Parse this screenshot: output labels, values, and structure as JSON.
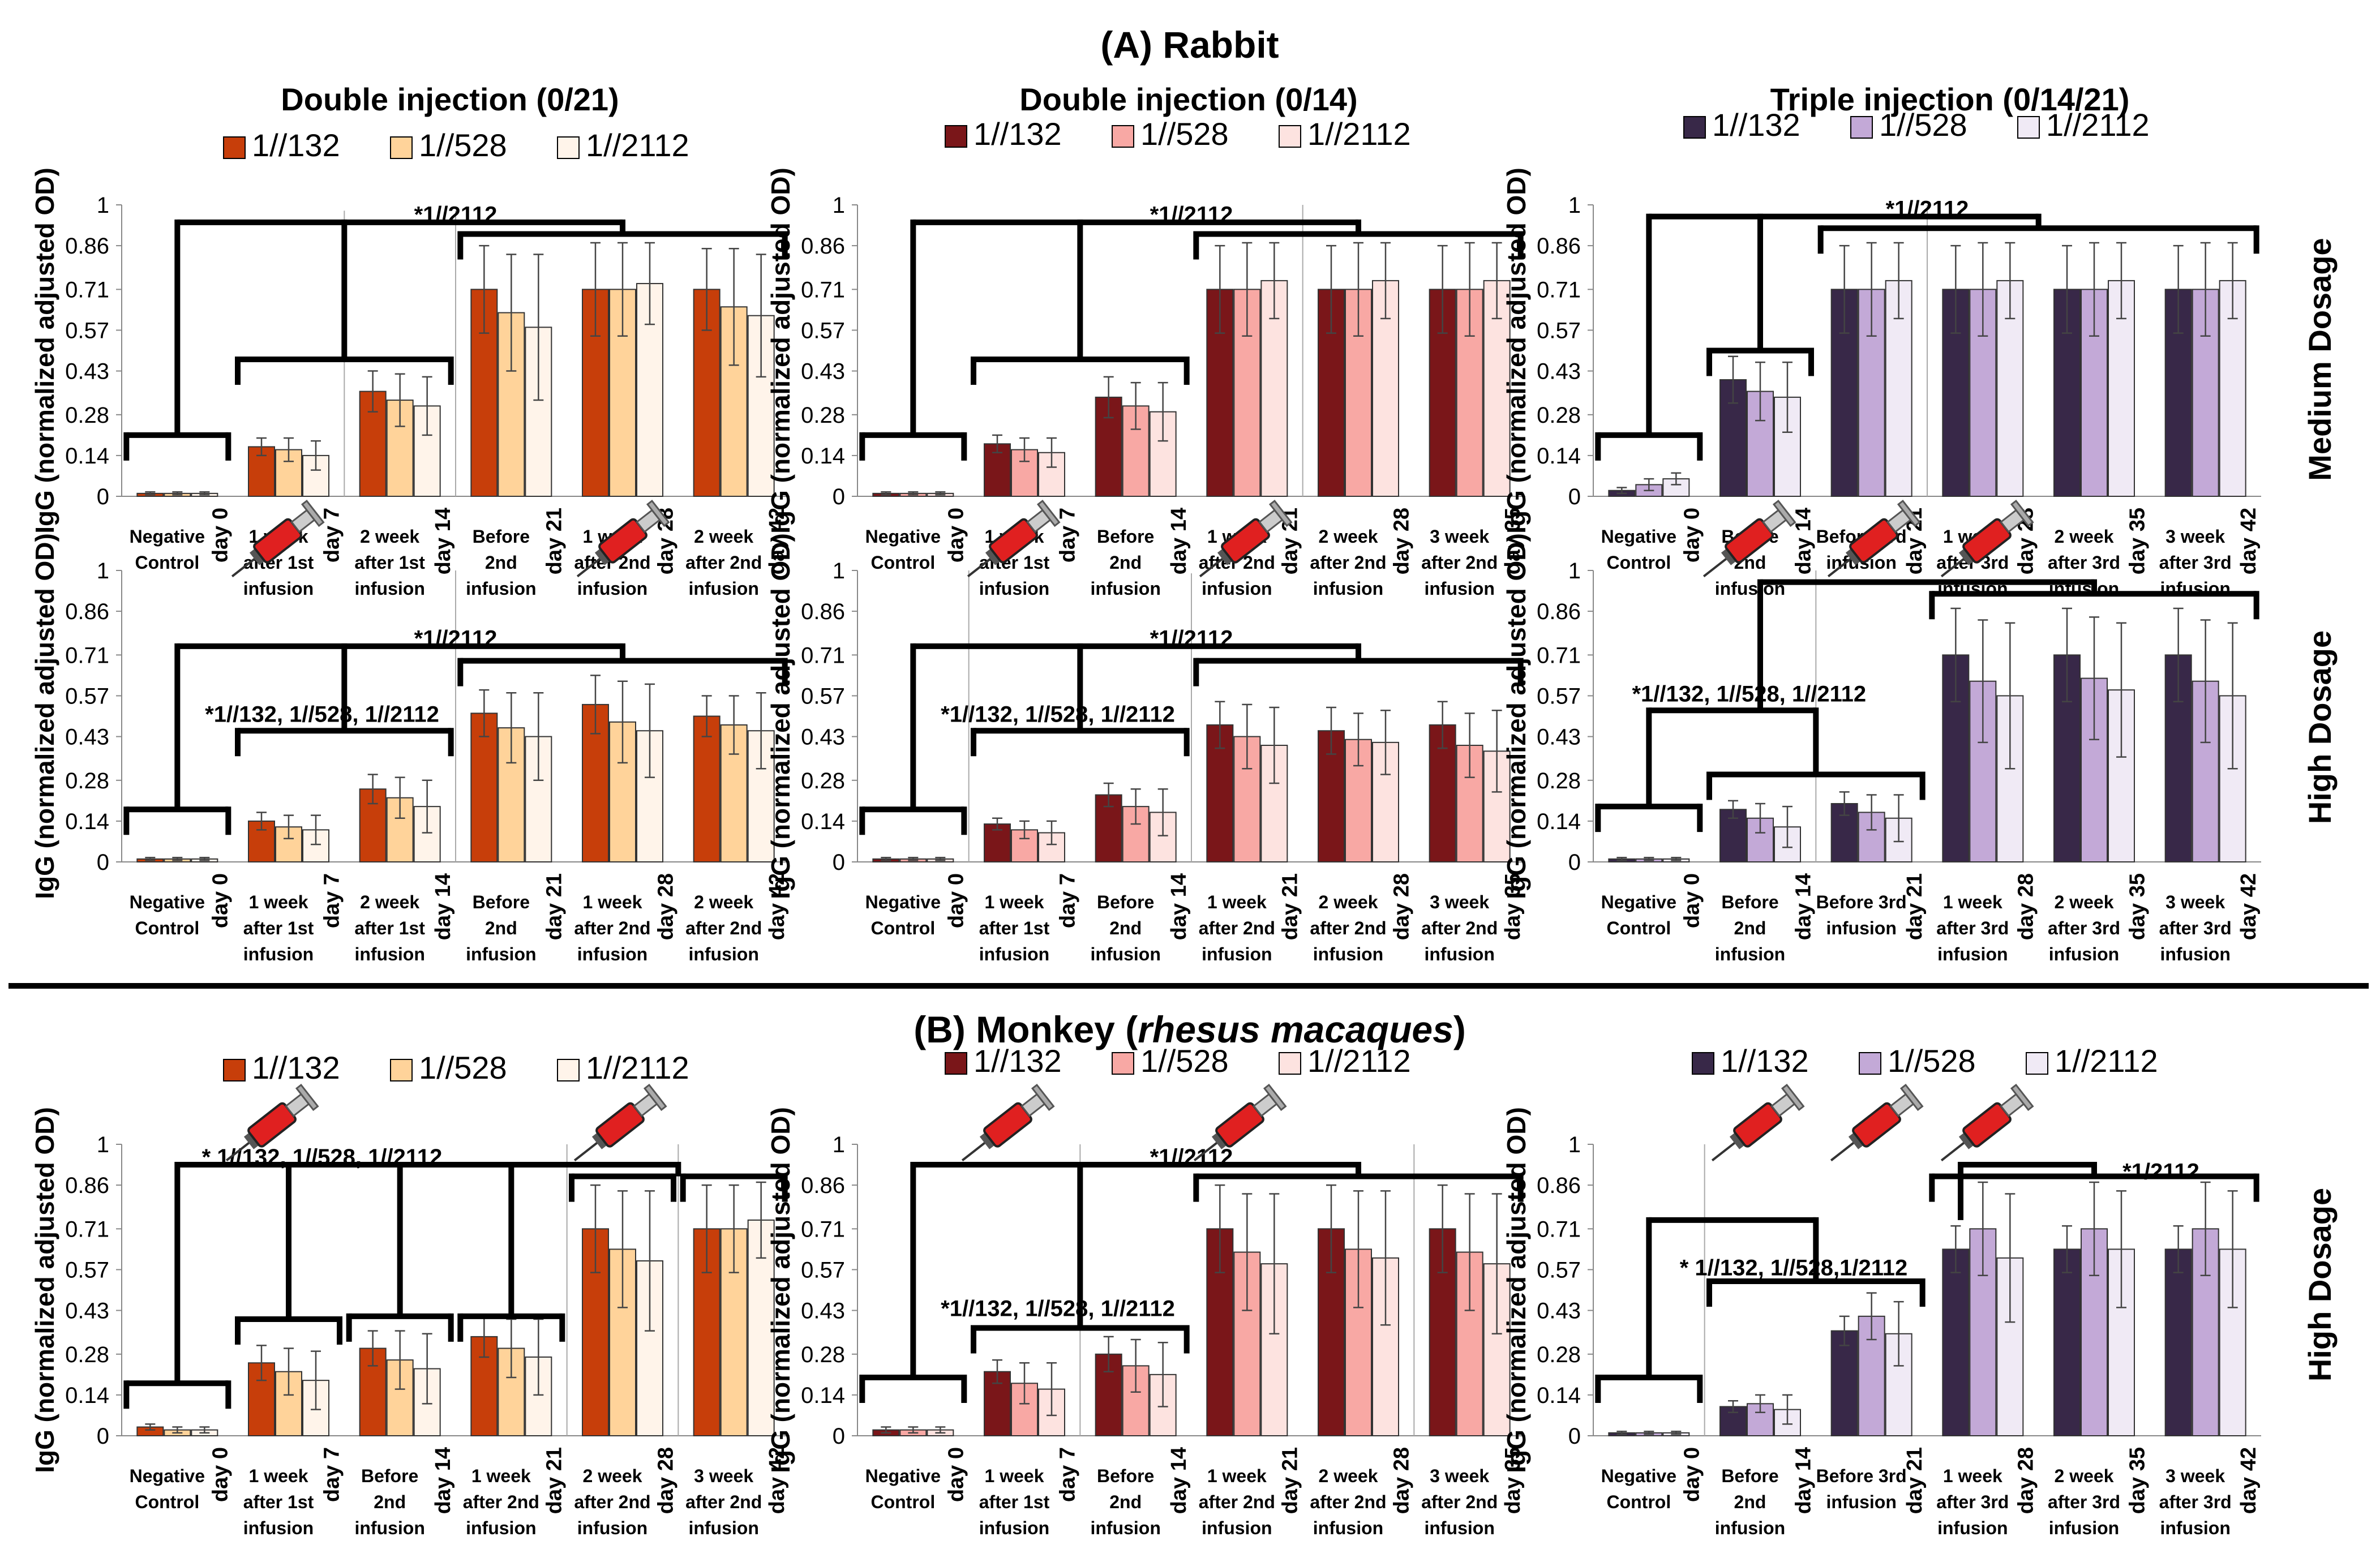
{
  "figure": {
    "section_a_title": "(A) Rabbit",
    "section_b_title_prefix": "(B) Monkey (",
    "section_b_title_italic": "rhesus macaques",
    "section_b_title_suffix": ")",
    "ylabel": "IgG (normalized adjusted OD)",
    "row_labels": [
      "Medium Dosage",
      "High Dosage",
      "High Dosage"
    ],
    "column_titles": [
      "Double injection (0/21)",
      "Double injection (0/14)",
      "Triple injection (0/14/21)"
    ],
    "legend_labels": [
      "1//132",
      "1//528",
      "1//2112"
    ],
    "colors": {
      "col0": [
        "#c73e0a",
        "#ffd39a",
        "#fff4ea"
      ],
      "col1": [
        "#7a1619",
        "#f8a8a4",
        "#fde3e0"
      ],
      "col2": [
        "#382848",
        "#c3a9d7",
        "#f0eaf5"
      ],
      "syringe_body": "#e02020",
      "bracket": "#000000"
    },
    "syringe_icon": "syringe-icon"
  },
  "chart_data": [
    {
      "type": "bar",
      "panel": "A-rabbit-double-0-21-medium",
      "categories": [
        "Negative\nControl",
        "1 week\nafter 1st\ninfusion",
        "2 week\nafter 1st\ninfusion",
        "Before\n2nd\ninfusion",
        "1 week\nafter 2nd\ninfusion",
        "2 week\nafter 2nd\ninfusion"
      ],
      "day_labels": [
        "day 0",
        "day 7",
        "day 14",
        "day 21",
        "day 28",
        "day 42"
      ],
      "yticks": [
        "0",
        "0.14",
        "0.28",
        "0.43",
        "0.57",
        "0.71",
        "0.86",
        "1"
      ],
      "ylim": [
        0,
        1
      ],
      "series": [
        {
          "name": "1//132",
          "values": [
            0.01,
            0.17,
            0.36,
            0.71,
            0.71,
            0.71
          ],
          "errors": [
            0.005,
            0.03,
            0.07,
            0.15,
            0.16,
            0.14
          ]
        },
        {
          "name": "1//528",
          "values": [
            0.01,
            0.16,
            0.33,
            0.63,
            0.71,
            0.65
          ],
          "errors": [
            0.005,
            0.04,
            0.09,
            0.2,
            0.16,
            0.2
          ]
        },
        {
          "name": "1//2112",
          "values": [
            0.01,
            0.14,
            0.31,
            0.58,
            0.73,
            0.62
          ],
          "errors": [
            0.005,
            0.05,
            0.1,
            0.25,
            0.14,
            0.21
          ]
        }
      ],
      "annotations": [
        "*1//2112"
      ]
    },
    {
      "type": "bar",
      "panel": "A-rabbit-double-0-14-medium",
      "categories": [
        "Negative\nControl",
        "1 week\nafter 1st\ninfusion",
        "Before\n2nd\ninfusion",
        "1 week\nafter 2nd\ninfusion",
        "2 week\nafter 2nd\ninfusion",
        "3 week\nafter 2nd\ninfusion"
      ],
      "day_labels": [
        "day 0",
        "day 7",
        "day 14",
        "day 21",
        "day 28",
        "day 35"
      ],
      "yticks": [
        "0",
        "0.14",
        "0.28",
        "0.43",
        "0.57",
        "0.71",
        "0.86",
        "1"
      ],
      "ylim": [
        0,
        1
      ],
      "series": [
        {
          "name": "1//132",
          "values": [
            0.01,
            0.18,
            0.34,
            0.71,
            0.71,
            0.71
          ],
          "errors": [
            0.005,
            0.03,
            0.07,
            0.15,
            0.15,
            0.15
          ]
        },
        {
          "name": "1//528",
          "values": [
            0.01,
            0.16,
            0.31,
            0.71,
            0.71,
            0.71
          ],
          "errors": [
            0.005,
            0.04,
            0.08,
            0.16,
            0.16,
            0.16
          ]
        },
        {
          "name": "1//2112",
          "values": [
            0.01,
            0.15,
            0.29,
            0.74,
            0.74,
            0.74
          ],
          "errors": [
            0.005,
            0.05,
            0.1,
            0.13,
            0.13,
            0.13
          ]
        }
      ],
      "annotations": [
        "*1//2112"
      ]
    },
    {
      "type": "bar",
      "panel": "A-rabbit-triple-0-14-21-medium",
      "categories": [
        "Negative\nControl",
        "Before\n2nd\ninfusion",
        "Before 3rd\ninfusion",
        "1 week\nafter 3rd\ninfusion",
        "2 week\nafter 3rd\ninfusion",
        "3 week\nafter 3rd\ninfusion"
      ],
      "day_labels": [
        "day 0",
        "day 14",
        "day 21",
        "day 28",
        "day 35",
        "day 42"
      ],
      "yticks": [
        "0",
        "0.14",
        "0.28",
        "0.43",
        "0.57",
        "0.71",
        "0.86",
        "1"
      ],
      "ylim": [
        0,
        1
      ],
      "series": [
        {
          "name": "1//132",
          "values": [
            0.02,
            0.4,
            0.71,
            0.71,
            0.71,
            0.71
          ],
          "errors": [
            0.01,
            0.08,
            0.15,
            0.15,
            0.15,
            0.15
          ]
        },
        {
          "name": "1//528",
          "values": [
            0.04,
            0.36,
            0.71,
            0.71,
            0.71,
            0.71
          ],
          "errors": [
            0.02,
            0.1,
            0.16,
            0.16,
            0.16,
            0.16
          ]
        },
        {
          "name": "1//2112",
          "values": [
            0.06,
            0.34,
            0.74,
            0.74,
            0.74,
            0.74
          ],
          "errors": [
            0.02,
            0.12,
            0.13,
            0.13,
            0.13,
            0.13
          ]
        }
      ],
      "annotations": [
        "*1//2112"
      ]
    },
    {
      "type": "bar",
      "panel": "A-rabbit-double-0-21-high",
      "categories": [
        "Negative\nControl",
        "1 week\nafter 1st\ninfusion",
        "2 week\nafter 1st\ninfusion",
        "Before\n2nd\ninfusion",
        "1 week\nafter 2nd\ninfusion",
        "2 week\nafter 2nd\ninfusion"
      ],
      "day_labels": [
        "day 0",
        "day 7",
        "day 14",
        "day 21",
        "day 28",
        "day 42"
      ],
      "yticks": [
        "0",
        "0.14",
        "0.28",
        "0.43",
        "0.57",
        "0.71",
        "0.86",
        "1"
      ],
      "ylim": [
        0,
        1
      ],
      "series": [
        {
          "name": "1//132",
          "values": [
            0.01,
            0.14,
            0.25,
            0.51,
            0.54,
            0.5
          ],
          "errors": [
            0.005,
            0.03,
            0.05,
            0.08,
            0.1,
            0.07
          ]
        },
        {
          "name": "1//528",
          "values": [
            0.01,
            0.12,
            0.22,
            0.46,
            0.48,
            0.47
          ],
          "errors": [
            0.005,
            0.04,
            0.07,
            0.12,
            0.14,
            0.1
          ]
        },
        {
          "name": "1//2112",
          "values": [
            0.01,
            0.11,
            0.19,
            0.43,
            0.45,
            0.45
          ],
          "errors": [
            0.005,
            0.05,
            0.09,
            0.15,
            0.16,
            0.13
          ]
        }
      ],
      "annotations": [
        "*1//2112",
        "*1//132,   1//528, 1//2112"
      ]
    },
    {
      "type": "bar",
      "panel": "A-rabbit-double-0-14-high",
      "categories": [
        "Negative\nControl",
        "1 week\nafter 1st\ninfusion",
        "Before\n2nd\ninfusion",
        "1 week\nafter 2nd\ninfusion",
        "2 week\nafter 2nd\ninfusion",
        "3 week\nafter 2nd\ninfusion"
      ],
      "day_labels": [
        "day 0",
        "day 7",
        "day 14",
        "day 21",
        "day 28",
        "day 35"
      ],
      "yticks": [
        "0",
        "0.14",
        "0.28",
        "0.43",
        "0.57",
        "0.71",
        "0.86",
        "1"
      ],
      "ylim": [
        0,
        1
      ],
      "series": [
        {
          "name": "1//132",
          "values": [
            0.01,
            0.13,
            0.23,
            0.47,
            0.45,
            0.47
          ],
          "errors": [
            0.005,
            0.02,
            0.04,
            0.08,
            0.08,
            0.08
          ]
        },
        {
          "name": "1//528",
          "values": [
            0.01,
            0.11,
            0.19,
            0.43,
            0.42,
            0.4
          ],
          "errors": [
            0.005,
            0.03,
            0.06,
            0.11,
            0.09,
            0.11
          ]
        },
        {
          "name": "1//2112",
          "values": [
            0.01,
            0.1,
            0.17,
            0.4,
            0.41,
            0.38
          ],
          "errors": [
            0.005,
            0.04,
            0.08,
            0.13,
            0.11,
            0.14
          ]
        }
      ],
      "annotations": [
        "*1//2112",
        "*1//132,     1//528, 1//2112"
      ]
    },
    {
      "type": "bar",
      "panel": "A-rabbit-triple-0-14-21-high",
      "categories": [
        "Negative\nControl",
        "Before\n2nd\ninfusion",
        "Before 3rd\ninfusion",
        "1 week\nafter 3rd\ninfusion",
        "2 week\nafter 3rd\ninfusion",
        "3 week\nafter 3rd\ninfusion"
      ],
      "day_labels": [
        "day 0",
        "day 14",
        "day 21",
        "day 28",
        "day 35",
        "day 42"
      ],
      "yticks": [
        "0",
        "0.14",
        "0.28",
        "0.43",
        "0.57",
        "0.71",
        "0.86",
        "1"
      ],
      "ylim": [
        0,
        1
      ],
      "series": [
        {
          "name": "1//132",
          "values": [
            0.01,
            0.18,
            0.2,
            0.71,
            0.71,
            0.71
          ],
          "errors": [
            0.005,
            0.03,
            0.04,
            0.16,
            0.16,
            0.16
          ]
        },
        {
          "name": "1//528",
          "values": [
            0.01,
            0.15,
            0.17,
            0.62,
            0.63,
            0.62
          ],
          "errors": [
            0.005,
            0.05,
            0.06,
            0.21,
            0.21,
            0.21
          ]
        },
        {
          "name": "1//2112",
          "values": [
            0.01,
            0.12,
            0.15,
            0.57,
            0.59,
            0.57
          ],
          "errors": [
            0.005,
            0.07,
            0.08,
            0.25,
            0.23,
            0.25
          ]
        }
      ],
      "annotations": [
        "*1//132, 1//528, 1//2112"
      ]
    },
    {
      "type": "bar",
      "panel": "B-monkey-double-0-21-high",
      "categories": [
        "Negative\nControl",
        "1 week\nafter 1st\ninfusion",
        "Before\n2nd\ninfusion",
        "1 week\nafter 2nd\ninfusion",
        "2 week\nafter 2nd\ninfusion",
        "3 week\nafter 2nd\ninfusion"
      ],
      "day_labels": [
        "day 0",
        "day 7",
        "day 14",
        "day 21",
        "day 28",
        "day 42"
      ],
      "yticks": [
        "0",
        "0.14",
        "0.28",
        "0.43",
        "0.57",
        "0.71",
        "0.86",
        "1"
      ],
      "ylim": [
        0,
        1
      ],
      "series": [
        {
          "name": "1//132",
          "values": [
            0.03,
            0.25,
            0.3,
            0.34,
            0.71,
            0.71
          ],
          "errors": [
            0.01,
            0.06,
            0.06,
            0.07,
            0.15,
            0.15
          ]
        },
        {
          "name": "1//528",
          "values": [
            0.02,
            0.22,
            0.26,
            0.3,
            0.64,
            0.71
          ],
          "errors": [
            0.01,
            0.08,
            0.1,
            0.1,
            0.2,
            0.15
          ]
        },
        {
          "name": "1//2112",
          "values": [
            0.02,
            0.19,
            0.23,
            0.27,
            0.6,
            0.74
          ],
          "errors": [
            0.01,
            0.1,
            0.12,
            0.13,
            0.24,
            0.13
          ]
        }
      ],
      "annotations": [
        "* 1//132, 1//528, 1//2112"
      ]
    },
    {
      "type": "bar",
      "panel": "B-monkey-double-0-14-high",
      "categories": [
        "Negative\nControl",
        "1 week\nafter 1st\ninfusion",
        "Before\n2nd\ninfusion",
        "1 week\nafter 2nd\ninfusion",
        "2 week\nafter 2nd\ninfusion",
        "3 week\nafter 2nd\ninfusion"
      ],
      "day_labels": [
        "day 0",
        "day 7",
        "day 14",
        "day 21",
        "day 28",
        "day 35"
      ],
      "yticks": [
        "0",
        "0.14",
        "0.28",
        "0.43",
        "0.57",
        "0.71",
        "0.86",
        "1"
      ],
      "ylim": [
        0,
        1
      ],
      "series": [
        {
          "name": "1//132",
          "values": [
            0.02,
            0.22,
            0.28,
            0.71,
            0.71,
            0.71
          ],
          "errors": [
            0.01,
            0.04,
            0.06,
            0.15,
            0.15,
            0.15
          ]
        },
        {
          "name": "1//528",
          "values": [
            0.02,
            0.18,
            0.24,
            0.63,
            0.64,
            0.63
          ],
          "errors": [
            0.01,
            0.07,
            0.09,
            0.2,
            0.2,
            0.2
          ]
        },
        {
          "name": "1//2112",
          "values": [
            0.02,
            0.16,
            0.21,
            0.59,
            0.61,
            0.59
          ],
          "errors": [
            0.01,
            0.09,
            0.11,
            0.24,
            0.23,
            0.24
          ]
        }
      ],
      "annotations": [
        "*1//2112",
        "*1//132,     1//528, 1//2112"
      ]
    },
    {
      "type": "bar",
      "panel": "B-monkey-triple-0-14-21-high",
      "categories": [
        "Negative\nControl",
        "Before\n2nd\ninfusion",
        "Before 3rd\ninfusion",
        "1 week\nafter 3rd\ninfusion",
        "2 week\nafter 3rd\ninfusion",
        "3 week\nafter 3rd\ninfusion"
      ],
      "day_labels": [
        "day 0",
        "day 14",
        "day 21",
        "day 28",
        "day 35",
        "day 42"
      ],
      "yticks": [
        "0",
        "0.14",
        "0.28",
        "0.43",
        "0.57",
        "0.71",
        "0.86",
        "1"
      ],
      "ylim": [
        0,
        1
      ],
      "series": [
        {
          "name": "1//132",
          "values": [
            0.01,
            0.1,
            0.36,
            0.64,
            0.64,
            0.64
          ],
          "errors": [
            0.005,
            0.02,
            0.05,
            0.08,
            0.08,
            0.08
          ]
        },
        {
          "name": "1//528",
          "values": [
            0.01,
            0.11,
            0.41,
            0.71,
            0.71,
            0.71
          ],
          "errors": [
            0.005,
            0.03,
            0.08,
            0.16,
            0.16,
            0.16
          ]
        },
        {
          "name": "1//2112",
          "values": [
            0.01,
            0.09,
            0.35,
            0.61,
            0.64,
            0.64
          ],
          "errors": [
            0.005,
            0.05,
            0.11,
            0.22,
            0.2,
            0.2
          ]
        }
      ],
      "annotations": [
        "*1/2112",
        "* 1//132,  1//528,1/2112"
      ]
    }
  ]
}
